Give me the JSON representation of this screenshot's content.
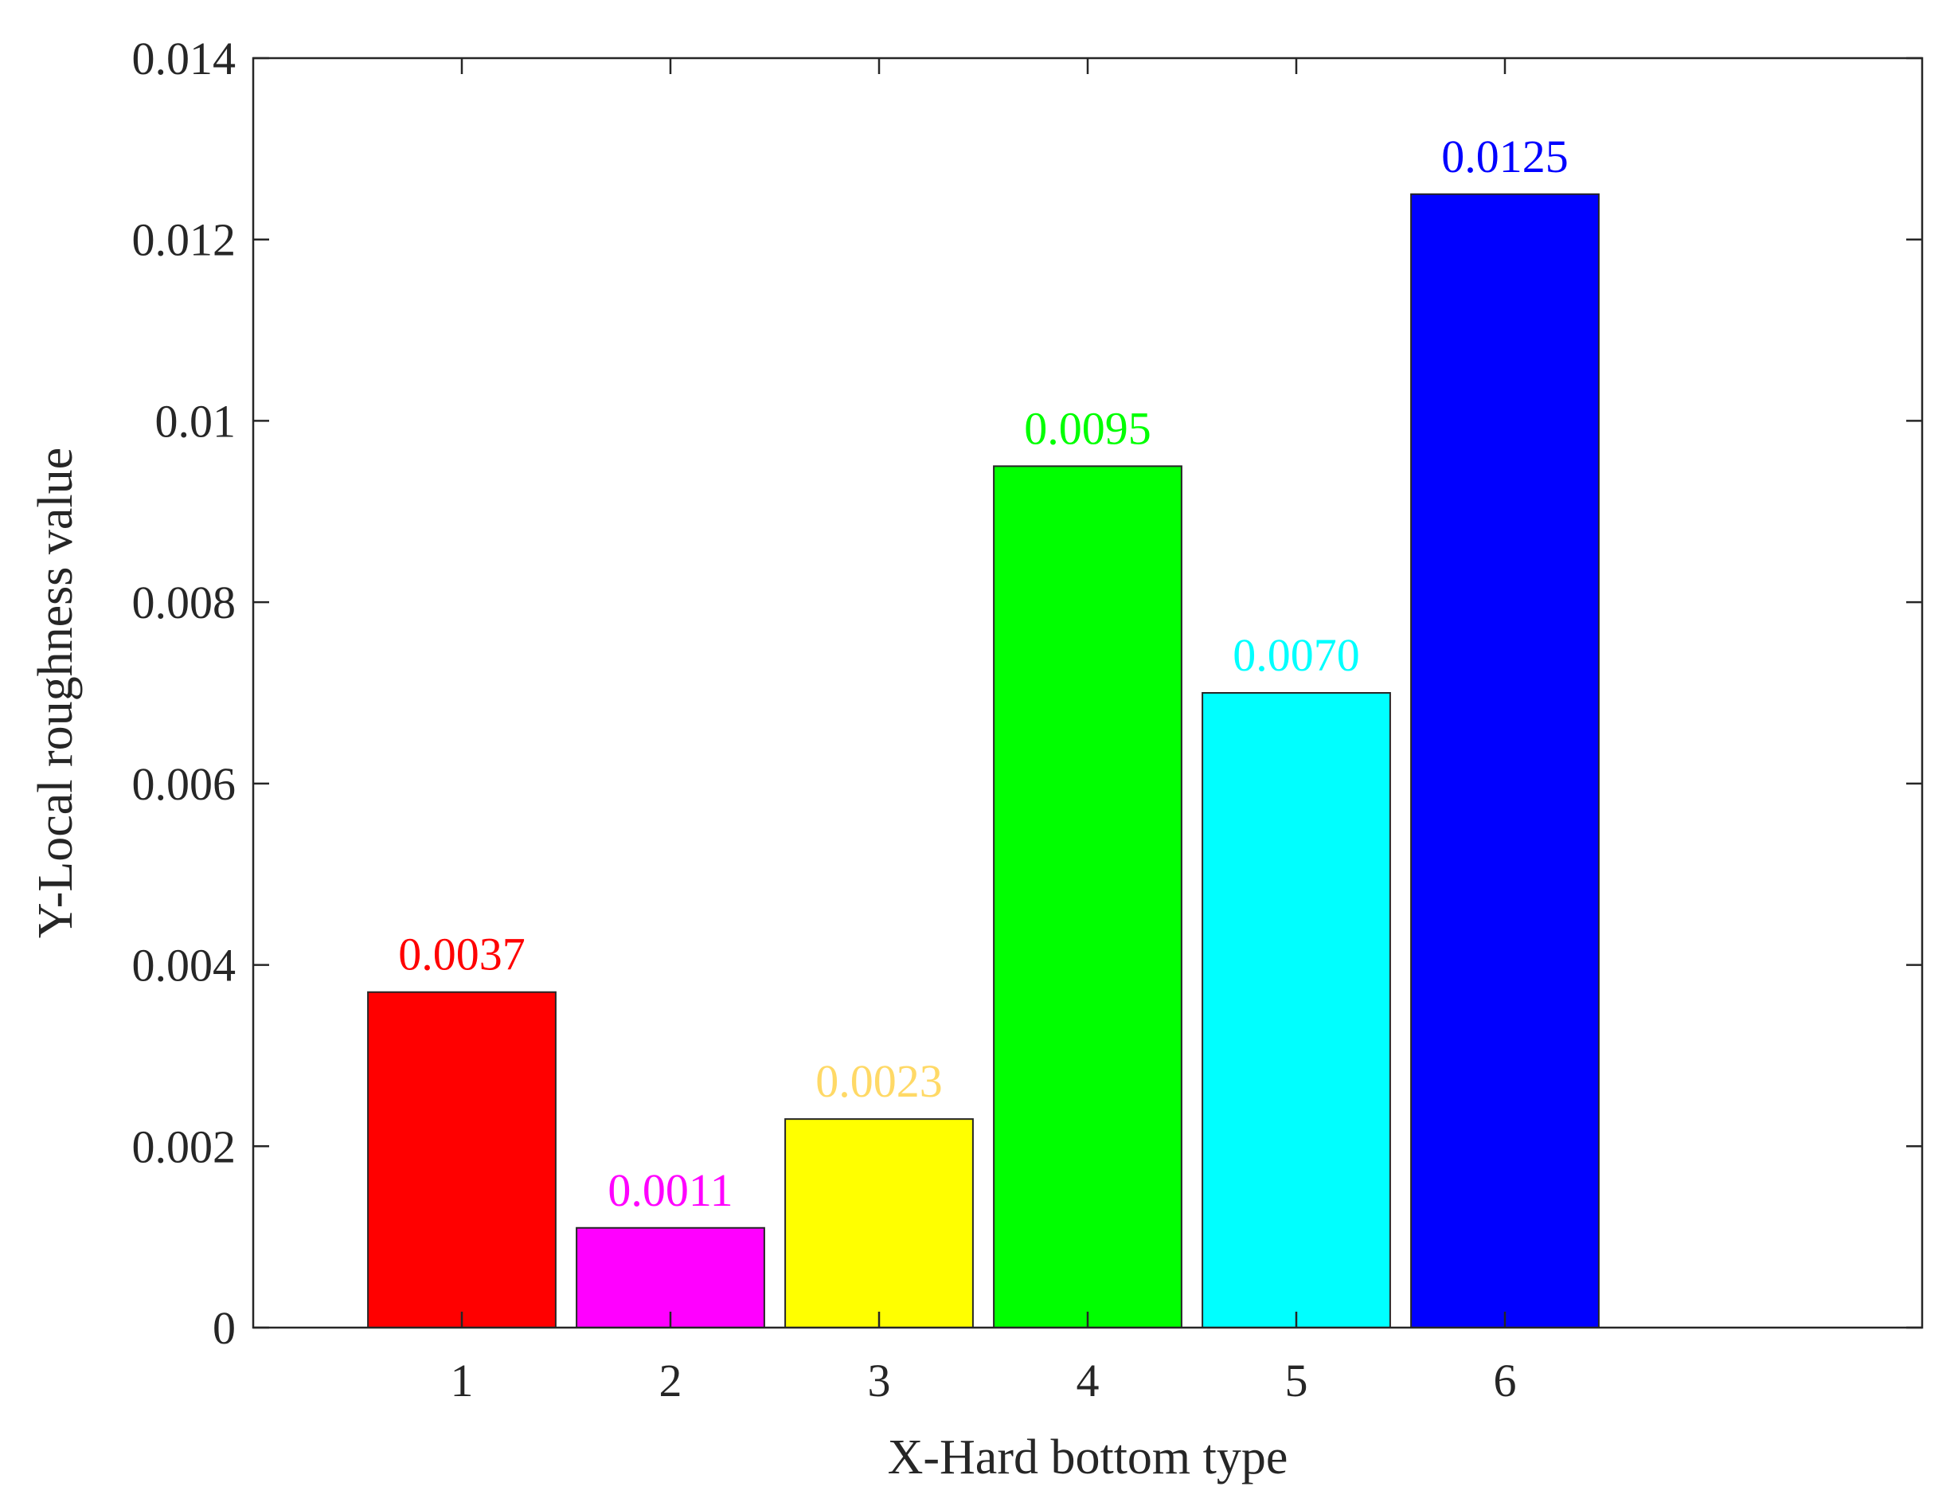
{
  "chart_data": {
    "type": "bar",
    "title": "",
    "xlabel": "X-Hard bottom type",
    "ylabel": "Y-Local roughness value",
    "categories": [
      "1",
      "2",
      "3",
      "4",
      "5",
      "6"
    ],
    "values": [
      0.0037,
      0.0011,
      0.0023,
      0.0095,
      0.007,
      0.0125
    ],
    "data_labels": [
      "0.0037",
      "0.0011",
      "0.0023",
      "0.0095",
      "0.0070",
      "0.0125"
    ],
    "bar_colors": [
      "#ff0000",
      "#ff00ff",
      "#ffff00",
      "#00ff00",
      "#00ffff",
      "#0000ff"
    ],
    "label_colors": [
      "#ff0000",
      "#ff00ff",
      "#ffd966",
      "#00ff00",
      "#00ffff",
      "#0000ff"
    ],
    "xlim": [
      0,
      8
    ],
    "ylim": [
      0,
      0.014
    ],
    "yticks": [
      "0",
      "0.002",
      "0.004",
      "0.006",
      "0.008",
      "0.01",
      "0.012",
      "0.014"
    ],
    "grid": false,
    "legend": "none"
  }
}
